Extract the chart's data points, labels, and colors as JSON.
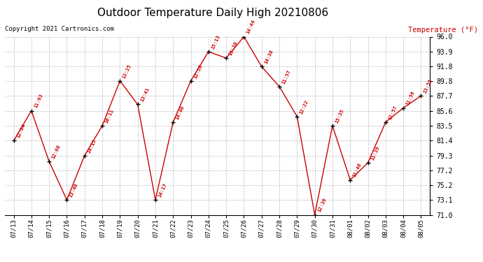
{
  "title": "Outdoor Temperature Daily High 20210806",
  "copyright": "Copyright 2021 Cartronics.com",
  "ylabel": "Temperature (°F)",
  "dates": [
    "07/13",
    "07/14",
    "07/15",
    "07/16",
    "07/17",
    "07/18",
    "07/19",
    "07/20",
    "07/21",
    "07/22",
    "07/23",
    "07/24",
    "07/25",
    "07/26",
    "07/27",
    "07/28",
    "07/29",
    "07/30",
    "07/31",
    "08/01",
    "08/02",
    "08/03",
    "08/04",
    "08/05"
  ],
  "temps": [
    81.4,
    85.6,
    78.5,
    73.1,
    79.3,
    83.5,
    89.8,
    86.5,
    73.1,
    84.0,
    89.8,
    93.9,
    93.0,
    96.0,
    91.8,
    89.0,
    84.8,
    71.0,
    83.5,
    75.9,
    78.3,
    84.0,
    86.0,
    87.7
  ],
  "times": [
    "12:04",
    "11:03",
    "12:08",
    "13:40",
    "14:15",
    "16:11",
    "13:25",
    "13:41",
    "14:17",
    "14:40",
    "12:28",
    "15:13",
    "13:38",
    "14:44",
    "14:38",
    "11:57",
    "12:22",
    "12:36",
    "15:35",
    "11:46",
    "11:39",
    "12:57",
    "11:56",
    "13:55"
  ],
  "ylim": [
    71.0,
    96.0
  ],
  "yticks": [
    71.0,
    73.1,
    75.2,
    77.2,
    79.3,
    81.4,
    83.5,
    85.6,
    87.7,
    89.8,
    91.8,
    93.9,
    96.0
  ],
  "line_color": "#cc0000",
  "marker_color": "#000000",
  "bg_color": "#ffffff",
  "grid_color": "#bbbbbb",
  "title_color": "#000000",
  "label_color": "#cc0000",
  "copyright_color": "#000000"
}
